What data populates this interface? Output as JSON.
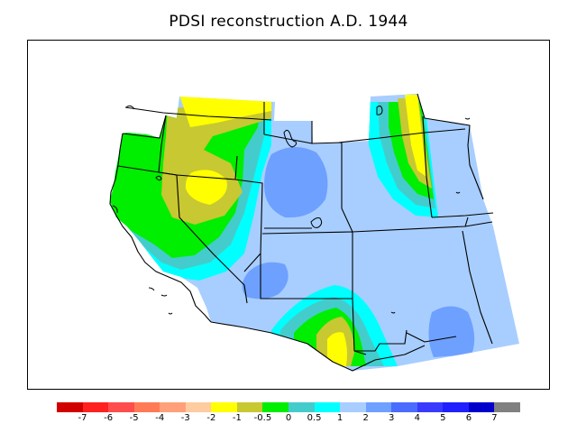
{
  "title": "PDSI reconstruction A.D. 1944",
  "colors": {
    "background": "#ffffff",
    "border": "#000000",
    "map_default": "#a8ceff"
  },
  "legend": {
    "colors": [
      "#d10000",
      "#ff2020",
      "#ff4c4c",
      "#ff7a55",
      "#ffa07a",
      "#ffcba0",
      "#ffff00",
      "#c8c832",
      "#00ee00",
      "#44cccc",
      "#00ffff",
      "#a8ceff",
      "#6ea0ff",
      "#4a6cff",
      "#3a3aff",
      "#2020ff",
      "#0000cc",
      "#808080"
    ],
    "labels": [
      "-7",
      "-6",
      "-5",
      "-4",
      "-3",
      "-2",
      "-1",
      "-0.5",
      "0",
      "0.5",
      "1",
      "2",
      "3",
      "4",
      "5",
      "6",
      "7"
    ]
  }
}
